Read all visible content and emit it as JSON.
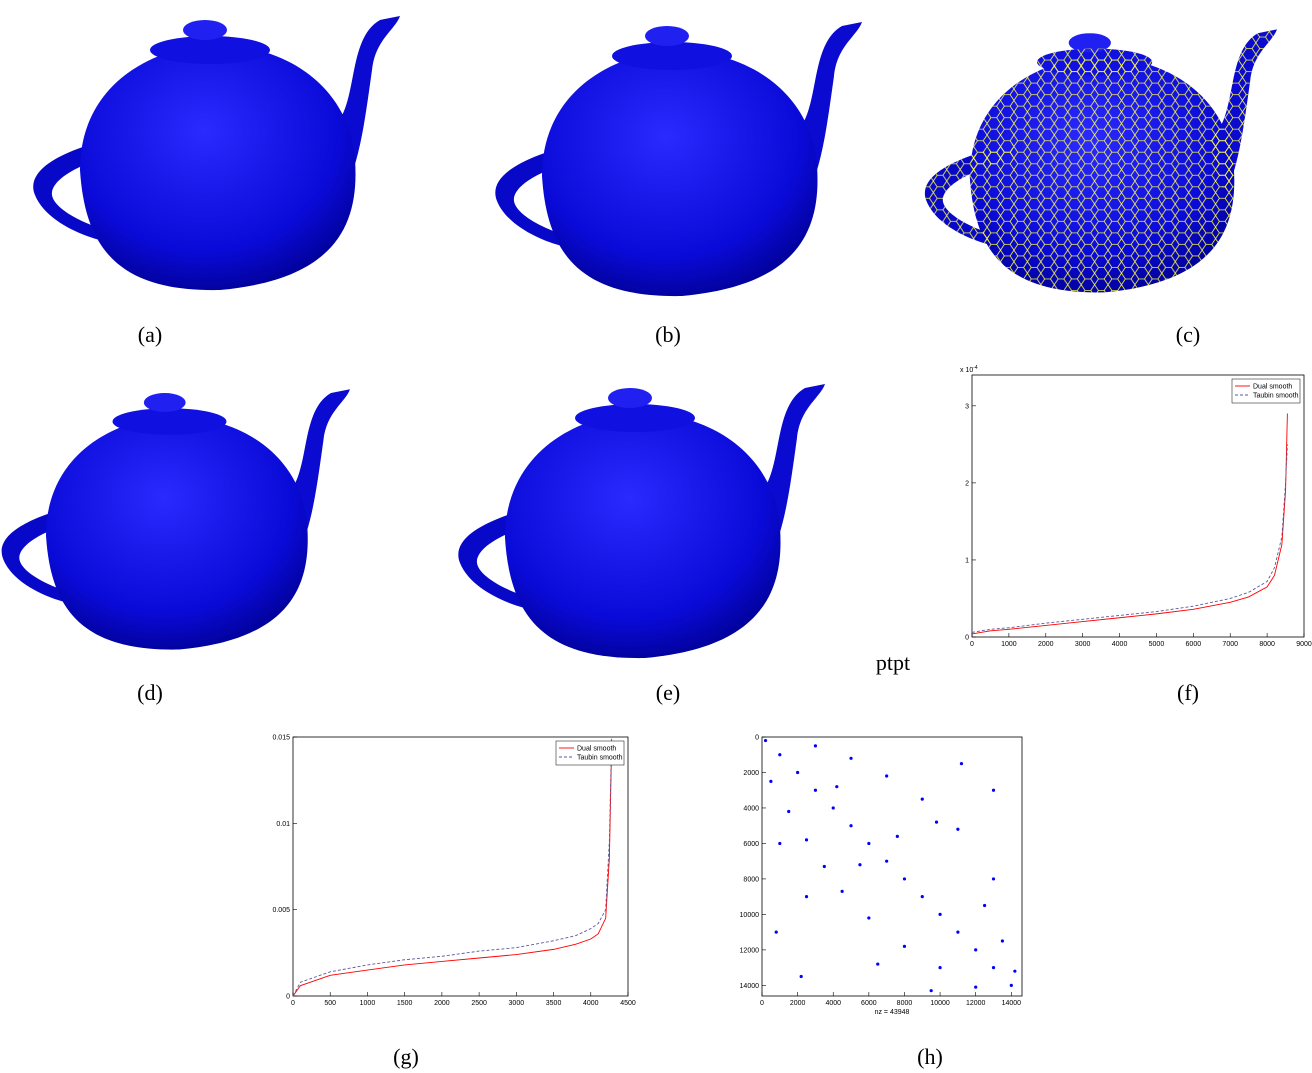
{
  "figure": {
    "captions": [
      "(a)",
      "(b)",
      "(c)",
      "(d)",
      "(e)",
      "(f)",
      "(g)",
      "(h)"
    ],
    "note": "ptpt"
  },
  "chart_data": [
    {
      "type": "line",
      "x": [
        0,
        500,
        1000,
        2000,
        3000,
        4000,
        5000,
        6000,
        7000,
        7500,
        8000,
        8200,
        8400,
        8500,
        8550
      ],
      "series": [
        {
          "name": "Dual smooth",
          "color": "#ff0000",
          "dash": false,
          "values": [
            0.04,
            0.08,
            0.1,
            0.15,
            0.2,
            0.25,
            0.3,
            0.36,
            0.45,
            0.52,
            0.65,
            0.8,
            1.2,
            1.9,
            2.9
          ]
        },
        {
          "name": "Taubin smooth",
          "color": "#5a5a9a",
          "dash": true,
          "values": [
            0.06,
            0.1,
            0.12,
            0.18,
            0.23,
            0.28,
            0.33,
            0.4,
            0.5,
            0.58,
            0.72,
            0.9,
            1.3,
            2.0,
            2.5
          ]
        }
      ],
      "xlim": [
        0,
        9000
      ],
      "xticks": [
        0,
        1000,
        2000,
        3000,
        4000,
        5000,
        6000,
        7000,
        8000,
        9000
      ],
      "ylim": [
        0,
        3.4
      ],
      "yticks": [
        0,
        1,
        2,
        3
      ],
      "y_multiplier": {
        "base": "x 10",
        "exponent": "-4"
      },
      "legend": "upper right"
    },
    {
      "type": "line",
      "x": [
        0,
        100,
        500,
        1000,
        1500,
        2000,
        2500,
        3000,
        3500,
        3800,
        4000,
        4100,
        4200,
        4250,
        4280
      ],
      "series": [
        {
          "name": "Dual smooth",
          "color": "#ff0000",
          "dash": false,
          "values": [
            0,
            0.0006,
            0.0012,
            0.0015,
            0.0018,
            0.002,
            0.0022,
            0.0024,
            0.0027,
            0.003,
            0.0033,
            0.0036,
            0.0045,
            0.008,
            0.0145
          ]
        },
        {
          "name": "Taubin smooth",
          "color": "#5a5a9a",
          "dash": true,
          "values": [
            0,
            0.0008,
            0.0014,
            0.0018,
            0.0021,
            0.0023,
            0.0026,
            0.0028,
            0.0032,
            0.0035,
            0.0039,
            0.0042,
            0.005,
            0.009,
            0.015
          ]
        }
      ],
      "xlim": [
        0,
        4500
      ],
      "xticks": [
        0,
        500,
        1000,
        1500,
        2000,
        2500,
        3000,
        3500,
        4000,
        4500
      ],
      "ylim": [
        0,
        0.015
      ],
      "yticks": [
        0,
        0.005,
        0.01,
        0.015
      ],
      "legend": "upper right"
    },
    {
      "type": "scatter",
      "color": "#0000ff",
      "xlabel": "nz = 43948",
      "x": [
        200,
        1000,
        2000,
        3000,
        4000,
        5000,
        6000,
        7000,
        8000,
        9000,
        10000,
        11000,
        12000,
        13000,
        14000,
        500,
        1500,
        2500,
        3500,
        4500,
        6000,
        8000,
        10000,
        12000,
        3000,
        5000,
        7000,
        9000,
        11000,
        13000,
        1000,
        2500,
        6500,
        9500,
        12500,
        13500,
        800,
        4200,
        7600,
        11200,
        14200,
        5500,
        9800,
        2200,
        13000
      ],
      "y": [
        200,
        1000,
        2000,
        3000,
        4000,
        5000,
        6000,
        7000,
        8000,
        9000,
        10000,
        11000,
        12000,
        13000,
        14000,
        2500,
        4200,
        5800,
        7300,
        8700,
        10200,
        11800,
        13000,
        14100,
        500,
        1200,
        2200,
        3500,
        5200,
        8000,
        6000,
        9000,
        12800,
        14300,
        9500,
        11500,
        11000,
        2800,
        5600,
        1500,
        13200,
        7200,
        4800,
        13500,
        3000
      ],
      "xlim": [
        0,
        14600
      ],
      "xticks": [
        0,
        2000,
        4000,
        6000,
        8000,
        10000,
        12000,
        14000
      ],
      "ylim": [
        14600,
        0
      ],
      "yticks": [
        0,
        2000,
        4000,
        6000,
        8000,
        10000,
        12000,
        14000
      ]
    }
  ]
}
